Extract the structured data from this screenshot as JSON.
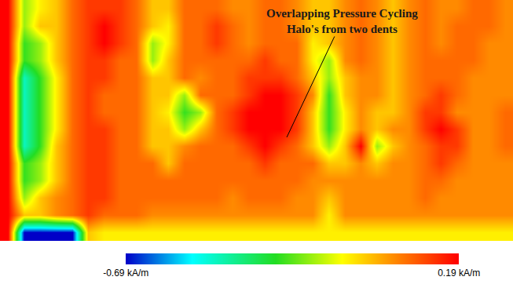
{
  "chart_data": {
    "type": "heatmap",
    "tick_labels": false,
    "annotations": [
      {
        "text": [
          "Overlapping Pressure Cycling",
          "Halo's from two dents"
        ]
      }
    ],
    "colorbar": {
      "range": [
        -0.69,
        0.19
      ],
      "ticks": [
        {
          "value": -0.69,
          "label": "-0.69 kA/m"
        },
        {
          "value": 0.19,
          "label": "0.19 kA/m"
        }
      ]
    },
    "cells": [
      [
        0.19,
        -0.2,
        -0.1,
        -0.05,
        0.06,
        0.12,
        0.12,
        0.12,
        0.06,
        -0.05,
        -0.05,
        0.06,
        0.06,
        0.06,
        0.02,
        0.02,
        0.06,
        0.06,
        0.02,
        -0.05,
        -0.05,
        0.02,
        0.06,
        0.02,
        -0.05,
        0.02,
        0.06,
        0.02,
        0.02,
        0.06,
        0.06,
        0.02
      ],
      [
        0.19,
        -0.2,
        -0.05,
        -0.05,
        0.06,
        0.12,
        0.19,
        0.12,
        0.06,
        -0.05,
        -0.1,
        0.06,
        0.06,
        0.12,
        0.06,
        0.02,
        0.06,
        0.06,
        0.02,
        -0.05,
        -0.05,
        0.02,
        0.06,
        0.02,
        -0.05,
        0.02,
        0.06,
        0.02,
        0.06,
        0.06,
        0.06,
        0.02
      ],
      [
        0.19,
        -0.28,
        -0.2,
        -0.05,
        0.06,
        0.12,
        0.19,
        0.12,
        0.06,
        -0.2,
        -0.1,
        0.06,
        0.06,
        0.12,
        0.06,
        0.02,
        0.06,
        0.06,
        0.06,
        -0.1,
        -0.05,
        0.02,
        0.06,
        0.02,
        -0.05,
        0.02,
        0.06,
        0.02,
        0.06,
        0.06,
        0.02,
        0.02
      ],
      [
        0.19,
        -0.28,
        -0.2,
        -0.05,
        0.06,
        0.12,
        0.12,
        0.06,
        0.06,
        -0.2,
        -0.05,
        0.06,
        0.06,
        0.06,
        0.06,
        0.06,
        0.12,
        0.06,
        0.06,
        -0.1,
        -0.2,
        0.02,
        0.06,
        0.02,
        -0.05,
        0.02,
        0.06,
        0.06,
        0.06,
        0.06,
        0.02,
        0.02
      ],
      [
        0.19,
        -0.45,
        -0.28,
        -0.1,
        0.06,
        0.12,
        0.12,
        0.06,
        0.06,
        -0.05,
        -0.05,
        0.06,
        0.02,
        0.06,
        0.06,
        0.12,
        0.12,
        0.12,
        0.06,
        -0.05,
        -0.2,
        -0.05,
        0.02,
        0.02,
        -0.05,
        0.02,
        0.06,
        0.06,
        0.06,
        0.02,
        0.02,
        0.02
      ],
      [
        0.19,
        -0.45,
        -0.28,
        -0.1,
        0.06,
        0.12,
        0.06,
        0.06,
        0.06,
        -0.05,
        -0.05,
        -0.2,
        0.06,
        0.06,
        0.06,
        0.12,
        0.19,
        0.19,
        0.12,
        0.02,
        -0.28,
        -0.05,
        0.02,
        0.02,
        -0.05,
        0.02,
        0.06,
        0.12,
        0.06,
        0.02,
        0.02,
        0.02
      ],
      [
        0.19,
        -0.45,
        -0.28,
        -0.1,
        0.06,
        0.12,
        0.06,
        0.06,
        0.06,
        -0.05,
        -0.1,
        -0.28,
        -0.2,
        0.06,
        0.12,
        0.19,
        0.19,
        0.19,
        0.12,
        -0.05,
        -0.28,
        -0.1,
        0.02,
        -0.05,
        -0.05,
        0.02,
        0.12,
        0.12,
        0.02,
        0.02,
        0.02,
        0.06
      ],
      [
        0.19,
        -0.45,
        -0.28,
        -0.1,
        0.06,
        0.12,
        0.12,
        0.06,
        0.06,
        -0.05,
        -0.05,
        -0.2,
        -0.05,
        0.06,
        0.12,
        0.19,
        0.19,
        0.19,
        0.12,
        -0.05,
        -0.28,
        -0.1,
        0.02,
        -0.05,
        0.02,
        0.02,
        0.12,
        0.19,
        0.12,
        0.02,
        0.02,
        0.06
      ],
      [
        0.19,
        -0.45,
        -0.28,
        -0.05,
        0.06,
        0.12,
        0.12,
        0.06,
        0.06,
        -0.05,
        -0.05,
        0.02,
        0.06,
        0.06,
        0.06,
        0.12,
        0.19,
        0.12,
        0.06,
        -0.05,
        -0.2,
        -0.05,
        0.19,
        -0.2,
        -0.05,
        0.02,
        0.06,
        0.12,
        0.12,
        0.02,
        0.02,
        0.06
      ],
      [
        0.19,
        -0.28,
        -0.2,
        -0.05,
        0.06,
        0.12,
        0.12,
        0.06,
        0.06,
        0.06,
        -0.05,
        0.06,
        0.06,
        0.06,
        0.06,
        0.06,
        0.12,
        0.06,
        0.06,
        0.06,
        -0.05,
        -0.05,
        0.02,
        -0.05,
        0.02,
        0.02,
        0.06,
        0.12,
        0.06,
        0.02,
        0.02,
        0.02
      ],
      [
        0.19,
        -0.28,
        -0.2,
        -0.05,
        0.06,
        0.12,
        0.12,
        0.06,
        0.06,
        0.06,
        0.06,
        0.06,
        0.06,
        0.06,
        0.06,
        0.06,
        0.06,
        0.06,
        0.06,
        0.02,
        0.02,
        0.02,
        0.02,
        0.02,
        0.02,
        0.02,
        0.06,
        0.06,
        0.02,
        0.02,
        0.02,
        0.02
      ],
      [
        0.19,
        -0.2,
        -0.05,
        0.02,
        0.06,
        0.12,
        0.12,
        0.06,
        0.06,
        0.06,
        0.06,
        0.06,
        0.06,
        0.06,
        0.02,
        0.06,
        0.06,
        0.06,
        0.02,
        0.02,
        -0.05,
        0.02,
        0.02,
        0.02,
        0.02,
        0.02,
        0.06,
        0.02,
        0.02,
        0.02,
        0.02,
        0.02
      ],
      [
        0.19,
        -0.05,
        -0.05,
        0.02,
        0.06,
        0.12,
        0.06,
        0.06,
        0.06,
        0.02,
        0.02,
        0.02,
        0.02,
        0.02,
        0.02,
        0.02,
        0.02,
        0.02,
        0.02,
        0.02,
        -0.1,
        0.02,
        0.02,
        0.02,
        0.02,
        0.02,
        0.02,
        0.02,
        0.02,
        0.02,
        0.02,
        0.02
      ],
      [
        0.19,
        -0.69,
        -0.69,
        -0.69,
        -0.69,
        -0.05,
        -0.1,
        -0.1,
        -0.1,
        -0.1,
        -0.1,
        -0.1,
        -0.1,
        -0.1,
        -0.1,
        -0.1,
        -0.1,
        -0.1,
        -0.1,
        -0.1,
        -0.1,
        -0.1,
        -0.1,
        -0.1,
        -0.1,
        -0.1,
        -0.1,
        -0.1,
        -0.1,
        -0.1,
        -0.1,
        -0.1
      ]
    ]
  }
}
